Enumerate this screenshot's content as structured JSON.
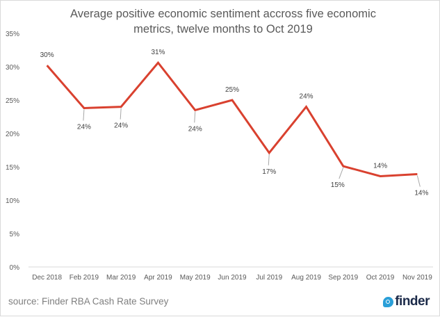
{
  "chart_data": {
    "type": "line",
    "title": "Average positive economic sentiment accross five economic metrics, twelve months to Oct 2019",
    "title_lines": [
      "Average positive economic sentiment accross five economic",
      "metrics, twelve months to Oct 2019"
    ],
    "xlabel": "",
    "ylabel": "",
    "categories": [
      "Dec 2018",
      "Feb 2019",
      "Mar 2019",
      "Apr 2019",
      "May 2019",
      "Jun 2019",
      "Jul 2019",
      "Aug 2019",
      "Sep 2019",
      "Oct 2019",
      "Nov 2019"
    ],
    "series": [
      {
        "name": "Average positive economic sentiment",
        "color": "#d9412f",
        "values": [
          30.2,
          23.8,
          24.0,
          30.6,
          23.5,
          25.0,
          17.1,
          24.0,
          15.1,
          13.6,
          13.9
        ],
        "labels": [
          "30%",
          "24%",
          "24%",
          "31%",
          "24%",
          "25%",
          "17%",
          "24%",
          "15%",
          "14%",
          "14%"
        ],
        "label_positions": [
          "above",
          "below",
          "below",
          "above",
          "below",
          "above",
          "below",
          "above",
          "below",
          "above",
          "below"
        ]
      }
    ],
    "ylim": [
      0,
      35
    ],
    "yticks": [
      0,
      5,
      10,
      15,
      20,
      25,
      30,
      35
    ],
    "ytick_labels": [
      "0%",
      "5%",
      "10%",
      "15%",
      "20%",
      "25%",
      "30%",
      "35%"
    ],
    "grid": false,
    "legend": "none"
  },
  "footer": {
    "source": "source: Finder RBA Cash Rate Survey",
    "logo_text": "finder",
    "logo_color": "#2a9fd8"
  }
}
